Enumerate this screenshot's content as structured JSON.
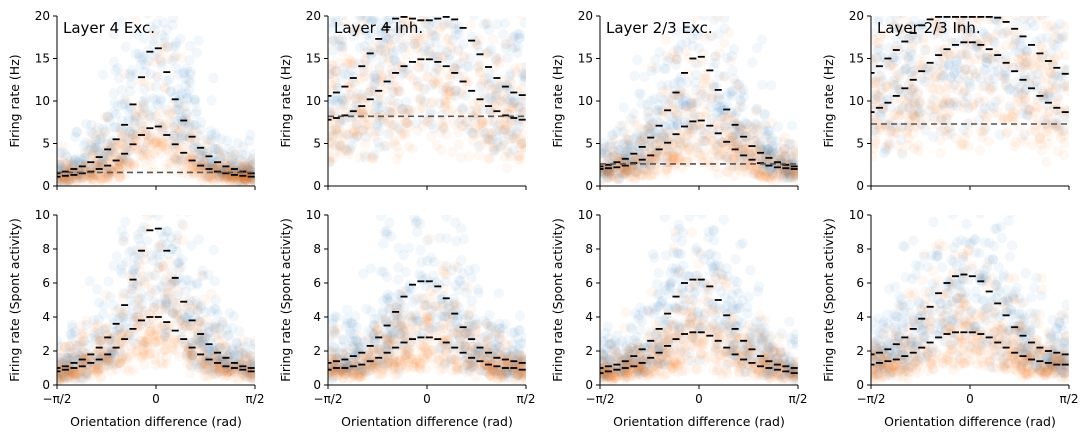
{
  "chart_data": {
    "type": "scatter",
    "colors": {
      "stim": "#1f77b4",
      "spont": "#ff7f0e",
      "median": "#000000",
      "baseline": "#555555"
    },
    "x_range": [
      -1.5708,
      1.5708
    ],
    "x_ticks": [
      {
        "value": -1.5708,
        "label": "−π/2"
      },
      {
        "value": 0,
        "label": "0"
      },
      {
        "value": 1.5708,
        "label": "π/2"
      }
    ],
    "x_bin_centers": [
      -1.5708,
      -1.4368,
      -1.3028,
      -1.1688,
      -1.0348,
      -0.9008,
      -0.7668,
      -0.6328,
      -0.4988,
      -0.3648,
      -0.2308,
      -0.0968,
      0.0372,
      0.1712,
      0.3052,
      0.4392,
      0.5732,
      0.7072,
      0.8412,
      0.9752,
      1.1092,
      1.2432,
      1.3772,
      1.5112
    ],
    "panels": [
      {
        "row": 0,
        "col": 0,
        "title": "Layer 4 Exc.",
        "ylabel": "Firing rate (Hz)",
        "xlabel": "",
        "ylim": [
          0,
          20
        ],
        "yticks": [
          0,
          5,
          10,
          15,
          20
        ],
        "baseline": 1.6,
        "series": [
          {
            "kind": "stim",
            "median_profile": [
              1.5,
              1.7,
              2.0,
              2.3,
              2.8,
              3.4,
              4.3,
              5.5,
              7.2,
              9.6,
              12.8,
              15.8,
              16.2,
              13.4,
              10.2,
              7.7,
              5.8,
              4.5,
              3.5,
              2.8,
              2.3,
              2.0,
              1.7,
              1.5
            ]
          },
          {
            "kind": "spont",
            "median_profile": [
              1.1,
              1.2,
              1.3,
              1.5,
              1.7,
              2.0,
              2.4,
              3.0,
              3.8,
              4.9,
              6.0,
              6.8,
              7.0,
              6.0,
              4.9,
              3.9,
              3.0,
              2.4,
              2.0,
              1.7,
              1.5,
              1.3,
              1.2,
              1.1
            ]
          }
        ]
      },
      {
        "row": 0,
        "col": 1,
        "title": "Layer 4 Inh.",
        "ylabel": "Firing rate (Hz)",
        "xlabel": "",
        "ylim": [
          0,
          20
        ],
        "yticks": [
          0,
          5,
          10,
          15,
          20
        ],
        "baseline": 8.2,
        "series": [
          {
            "kind": "stim",
            "median_profile": [
              10.6,
              11.0,
              11.7,
              12.7,
              14.1,
              15.6,
              17.3,
              18.7,
              19.7,
              19.9,
              19.7,
              19.5,
              19.5,
              19.7,
              19.9,
              19.6,
              18.6,
              17.1,
              15.5,
              14.0,
              12.7,
              11.7,
              11.0,
              10.7
            ]
          },
          {
            "kind": "spont",
            "median_profile": [
              7.8,
              8.0,
              8.3,
              8.8,
              9.4,
              10.2,
              11.2,
              12.3,
              13.3,
              14.1,
              14.6,
              14.9,
              14.9,
              14.6,
              14.1,
              13.3,
              12.3,
              11.2,
              10.2,
              9.4,
              8.8,
              8.3,
              8.0,
              7.8
            ]
          }
        ]
      },
      {
        "row": 0,
        "col": 2,
        "title": "Layer 2/3 Exc.",
        "ylabel": "Firing rate (Hz)",
        "xlabel": "",
        "ylim": [
          0,
          20
        ],
        "yticks": [
          0,
          5,
          10,
          15,
          20
        ],
        "baseline": 2.6,
        "series": [
          {
            "kind": "stim",
            "median_profile": [
              2.3,
              2.5,
              2.8,
              3.2,
              3.8,
              4.6,
              5.7,
              7.1,
              8.9,
              11.0,
              13.3,
              15.0,
              15.2,
              13.6,
              11.3,
              9.0,
              7.2,
              5.8,
              4.7,
              3.9,
              3.3,
              2.8,
              2.5,
              2.3
            ]
          },
          {
            "kind": "spont",
            "median_profile": [
              2.0,
              2.1,
              2.2,
              2.4,
              2.7,
              3.1,
              3.6,
              4.3,
              5.1,
              6.1,
              7.0,
              7.6,
              7.7,
              7.1,
              6.2,
              5.2,
              4.3,
              3.6,
              3.1,
              2.7,
              2.4,
              2.2,
              2.1,
              2.0
            ]
          }
        ]
      },
      {
        "row": 0,
        "col": 3,
        "title": "Layer 2/3 Inh.",
        "ylabel": "Firing rate (Hz)",
        "xlabel": "",
        "ylim": [
          0,
          20
        ],
        "yticks": [
          0,
          5,
          10,
          15,
          20
        ],
        "baseline": 7.3,
        "series": [
          {
            "kind": "stim",
            "median_profile": [
              13.3,
              14.1,
              15.0,
              16.0,
              17.0,
              18.0,
              18.9,
              19.6,
              19.9,
              19.9,
              19.9,
              19.9,
              19.9,
              19.9,
              19.9,
              19.8,
              19.3,
              18.5,
              17.6,
              16.6,
              15.6,
              14.7,
              13.9,
              13.2
            ]
          },
          {
            "kind": "spont",
            "median_profile": [
              8.7,
              9.2,
              9.8,
              10.6,
              11.5,
              12.5,
              13.5,
              14.5,
              15.4,
              16.1,
              16.6,
              16.9,
              16.9,
              16.6,
              16.1,
              15.4,
              14.5,
              13.5,
              12.5,
              11.5,
              10.6,
              9.8,
              9.2,
              8.7
            ]
          }
        ]
      },
      {
        "row": 1,
        "col": 0,
        "title": "",
        "ylabel": "Firing rate (Spont activity)",
        "xlabel": "Orientation difference (rad)",
        "ylim": [
          0,
          10
        ],
        "yticks": [
          0,
          2,
          4,
          6,
          8,
          10
        ],
        "baseline": null,
        "series": [
          {
            "kind": "stim",
            "median_profile": [
              1.0,
              1.1,
              1.3,
              1.5,
              1.8,
              2.2,
              2.8,
              3.6,
              4.7,
              6.2,
              7.9,
              9.1,
              9.2,
              7.9,
              6.3,
              4.9,
              3.8,
              3.0,
              2.4,
              1.9,
              1.6,
              1.3,
              1.1,
              1.0
            ]
          },
          {
            "kind": "spont",
            "median_profile": [
              0.8,
              0.9,
              1.0,
              1.1,
              1.3,
              1.5,
              1.8,
              2.2,
              2.7,
              3.3,
              3.8,
              4.0,
              4.0,
              3.7,
              3.2,
              2.7,
              2.2,
              1.8,
              1.5,
              1.3,
              1.1,
              1.0,
              0.9,
              0.8
            ]
          }
        ]
      },
      {
        "row": 1,
        "col": 1,
        "title": "",
        "ylabel": "Firing rate (Spont activity)",
        "xlabel": "Orientation difference (rad)",
        "ylim": [
          0,
          10
        ],
        "yticks": [
          0,
          2,
          4,
          6,
          8,
          10
        ],
        "baseline": null,
        "series": [
          {
            "kind": "stim",
            "median_profile": [
              1.3,
              1.4,
              1.5,
              1.7,
              1.9,
              2.3,
              2.8,
              3.5,
              4.3,
              5.2,
              5.9,
              6.1,
              6.1,
              5.8,
              5.1,
              4.2,
              3.4,
              2.7,
              2.2,
              1.9,
              1.6,
              1.5,
              1.4,
              1.3
            ]
          },
          {
            "kind": "spont",
            "median_profile": [
              0.9,
              1.0,
              1.0,
              1.1,
              1.2,
              1.4,
              1.6,
              1.9,
              2.2,
              2.5,
              2.7,
              2.8,
              2.8,
              2.7,
              2.5,
              2.2,
              1.9,
              1.6,
              1.4,
              1.2,
              1.1,
              1.0,
              1.0,
              0.9
            ]
          }
        ]
      },
      {
        "row": 1,
        "col": 2,
        "title": "",
        "ylabel": "Firing rate (Spont activity)",
        "xlabel": "Orientation difference (rad)",
        "ylim": [
          0,
          10
        ],
        "yticks": [
          0,
          2,
          4,
          6,
          8,
          10
        ],
        "baseline": null,
        "series": [
          {
            "kind": "stim",
            "median_profile": [
              1.0,
              1.1,
              1.2,
              1.4,
              1.7,
              2.1,
              2.6,
              3.3,
              4.2,
              5.2,
              6.0,
              6.2,
              6.2,
              5.8,
              5.0,
              4.1,
              3.3,
              2.6,
              2.1,
              1.7,
              1.4,
              1.2,
              1.1,
              1.0
            ]
          },
          {
            "kind": "spont",
            "median_profile": [
              0.7,
              0.8,
              0.9,
              1.0,
              1.1,
              1.3,
              1.6,
              1.9,
              2.3,
              2.7,
              3.0,
              3.1,
              3.1,
              2.9,
              2.6,
              2.2,
              1.8,
              1.5,
              1.3,
              1.1,
              1.0,
              0.9,
              0.8,
              0.7
            ]
          }
        ]
      },
      {
        "row": 1,
        "col": 3,
        "title": "",
        "ylabel": "Firing rate (Spont activity)",
        "xlabel": "Orientation difference (rad)",
        "ylim": [
          0,
          10
        ],
        "yticks": [
          0,
          2,
          4,
          6,
          8,
          10
        ],
        "baseline": null,
        "series": [
          {
            "kind": "stim",
            "median_profile": [
              1.8,
              1.9,
              2.1,
              2.4,
              2.8,
              3.3,
              3.9,
              4.6,
              5.4,
              6.0,
              6.4,
              6.5,
              6.4,
              6.1,
              5.5,
              4.8,
              4.1,
              3.4,
              2.9,
              2.5,
              2.2,
              2.0,
              1.9,
              1.8
            ]
          },
          {
            "kind": "spont",
            "median_profile": [
              1.2,
              1.3,
              1.4,
              1.5,
              1.7,
              1.9,
              2.2,
              2.5,
              2.8,
              3.0,
              3.1,
              3.1,
              3.1,
              3.0,
              2.8,
              2.5,
              2.2,
              1.9,
              1.7,
              1.5,
              1.4,
              1.3,
              1.2,
              1.2
            ]
          }
        ]
      }
    ]
  }
}
